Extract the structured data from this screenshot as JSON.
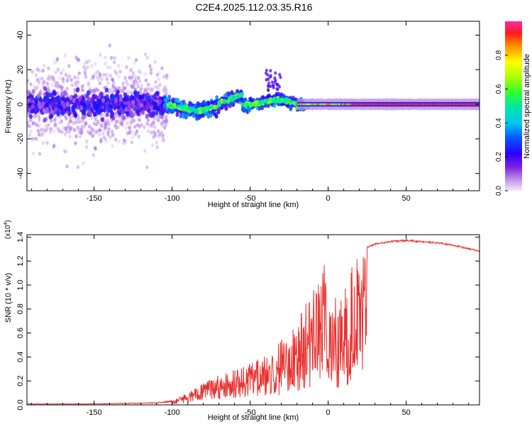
{
  "title": "C2E4.2025.112.03.35.R16",
  "chart_data": [
    {
      "type": "heatmap",
      "name": "spectrogram",
      "xlabel": "Height of straight line (km)",
      "ylabel": "Frequency (Hz)",
      "xlim": [
        -193,
        97
      ],
      "ylim": [
        -50,
        48
      ],
      "xticks": [
        -150,
        -100,
        -50,
        0,
        50
      ],
      "yticks": [
        -40,
        -20,
        0,
        20,
        40
      ],
      "colorbar": {
        "label": "Normalized spectral amplitude",
        "range": [
          0,
          1
        ],
        "ticks": [
          "0.0",
          "0.2",
          "0.4",
          "0.6",
          "0.8"
        ],
        "tick_values": [
          0,
          0.2,
          0.4,
          0.6,
          0.8
        ]
      },
      "regions": [
        {
          "x_range": [
            -193,
            -105
          ],
          "freq_spread": 48,
          "core_amplitude": 0.15,
          "description_level": "noisy"
        },
        {
          "x_range": [
            -105,
            -20
          ],
          "freq_spread": 15,
          "core_amplitude": 0.45,
          "description_level": "partial"
        },
        {
          "x_range": [
            -20,
            97
          ],
          "freq_spread": 3,
          "core_amplitude": 0.95,
          "description_level": "clean"
        }
      ]
    },
    {
      "type": "line",
      "name": "snr",
      "xlabel": "Height of straight line (km)",
      "ylabel": "SNR (10 * v/v)",
      "y_scale_label": "(x10",
      "y_scale_exponent": "4",
      "xlim": [
        -193,
        97
      ],
      "ylim": [
        0,
        1.42
      ],
      "xticks": [
        -150,
        -100,
        -50,
        0,
        50
      ],
      "yticks": [
        0.0,
        0.2,
        0.4,
        0.6,
        0.8,
        1.0,
        1.2,
        1.4
      ],
      "ytick_labels": [
        "0.0",
        "0.2",
        "0.4",
        "0.6",
        "0.8",
        "1.0",
        "1.2",
        "1.4"
      ],
      "color": "#e8302e",
      "envelope_points": {
        "x": [
          -193,
          -150,
          -110,
          -100,
          -90,
          -80,
          -70,
          -60,
          -50,
          -40,
          -30,
          -25,
          -20,
          -15,
          -10,
          -5,
          -2,
          0,
          5,
          10,
          15,
          20,
          25,
          30,
          40,
          50,
          60,
          70,
          80,
          90,
          97
        ],
        "y": [
          0.01,
          0.01,
          0.02,
          0.04,
          0.1,
          0.18,
          0.25,
          0.3,
          0.35,
          0.42,
          0.55,
          0.58,
          0.7,
          0.85,
          0.95,
          1.05,
          1.25,
          0.75,
          0.9,
          1.05,
          1.15,
          1.25,
          1.32,
          1.35,
          1.37,
          1.38,
          1.37,
          1.36,
          1.34,
          1.31,
          1.29
        ]
      }
    }
  ]
}
